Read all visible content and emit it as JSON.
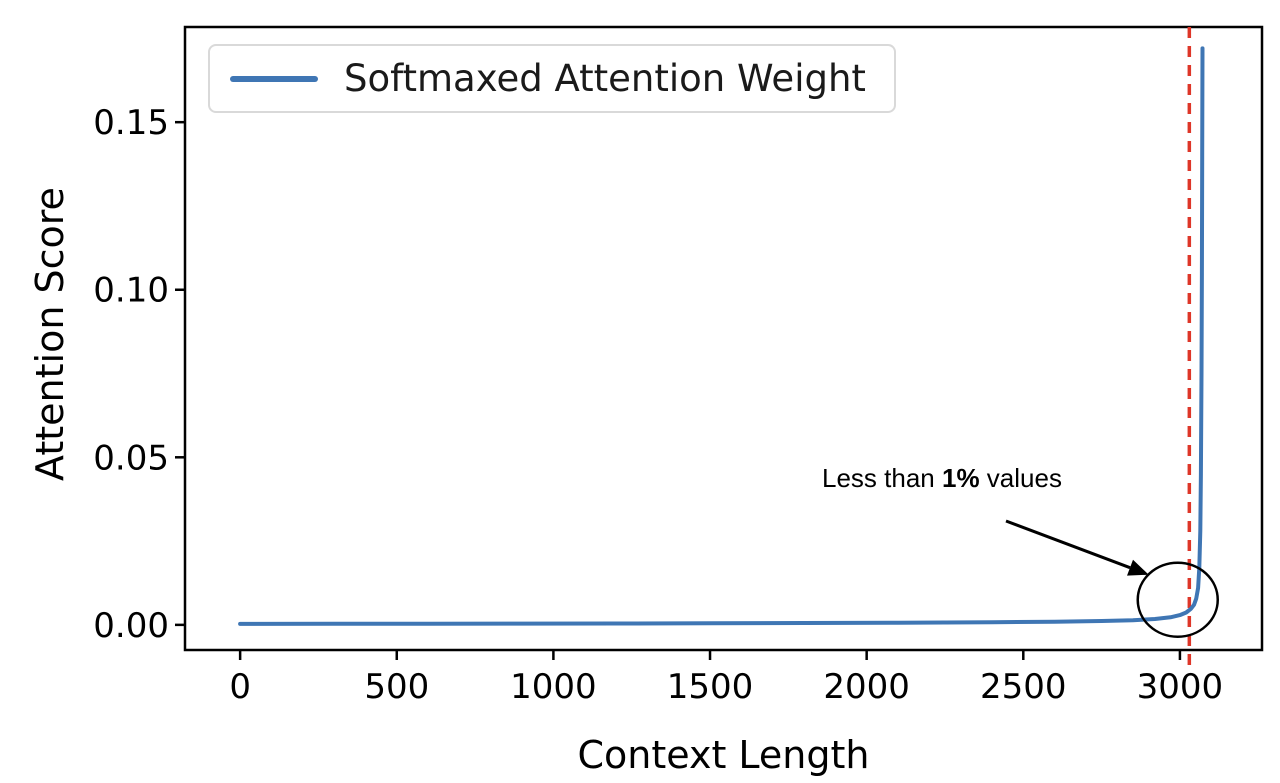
{
  "figure": {
    "background": "#ffffff"
  },
  "chart_data": {
    "type": "line",
    "title": "",
    "xlabel": "Context Length",
    "ylabel": "Attention Score",
    "xlim": [
      -176,
      3262
    ],
    "ylim": [
      -0.0075,
      0.1784
    ],
    "grid": false,
    "xticks": {
      "values": [
        0,
        500,
        1000,
        1500,
        2000,
        2500,
        3000
      ],
      "labels": [
        "0",
        "500",
        "1000",
        "1500",
        "2000",
        "2500",
        "3000"
      ]
    },
    "yticks": {
      "values": [
        0,
        0.05,
        0.1,
        0.15
      ],
      "labels": [
        "0.00",
        "0.05",
        "0.10",
        "0.15"
      ]
    },
    "legend": {
      "position": "upper left",
      "entries": [
        {
          "label": "Softmaxed Attention Weight",
          "color": "#3f76b4"
        }
      ]
    },
    "series": [
      {
        "name": "Softmaxed Attention Weight",
        "color": "#3f76b4",
        "points": [
          [
            0,
            0.0003
          ],
          [
            300,
            0.00032
          ],
          [
            600,
            0.00035
          ],
          [
            900,
            0.00038
          ],
          [
            1200,
            0.00042
          ],
          [
            1500,
            0.00048
          ],
          [
            1800,
            0.00056
          ],
          [
            2100,
            0.00066
          ],
          [
            2400,
            0.0008
          ],
          [
            2600,
            0.00095
          ],
          [
            2750,
            0.00115
          ],
          [
            2850,
            0.0014
          ],
          [
            2920,
            0.00175
          ],
          [
            2970,
            0.00225
          ],
          [
            3000,
            0.0029
          ],
          [
            3020,
            0.0037
          ],
          [
            3035,
            0.0048
          ],
          [
            3045,
            0.006
          ],
          [
            3052,
            0.0078
          ],
          [
            3058,
            0.011
          ],
          [
            3062,
            0.017
          ],
          [
            3065,
            0.028
          ],
          [
            3067,
            0.045
          ],
          [
            3069,
            0.075
          ],
          [
            3070,
            0.105
          ],
          [
            3071,
            0.14
          ],
          [
            3072,
            0.172
          ]
        ]
      }
    ],
    "vline": {
      "x": 3030,
      "color": "#de3628",
      "style": "dashed"
    },
    "annotation": {
      "text_prefix": "Less than ",
      "text_bold": "1%",
      "text_suffix": " values",
      "ellipse_center": [
        2993,
        0.0075
      ]
    }
  }
}
